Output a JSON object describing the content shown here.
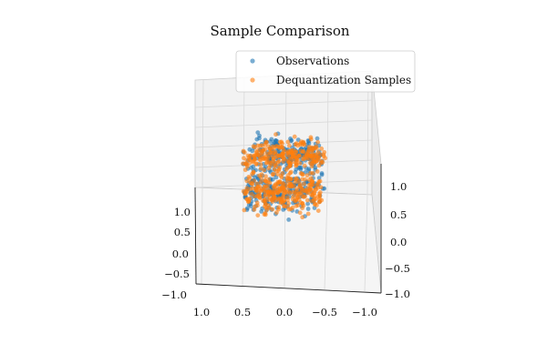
{
  "chart_data": {
    "type": "scatter",
    "projection": "3d",
    "title": "Sample Comparison",
    "xlabel": "",
    "ylabel": "",
    "zlabel": "",
    "grid": true,
    "legend_position": "top-right",
    "x_ticks": [
      "1.0",
      "0.5",
      "0.0",
      "−0.5",
      "−1.0"
    ],
    "y_ticks": [
      "1.0",
      "0.5",
      "0.0",
      "−0.5",
      "−1.0"
    ],
    "z_ticks": [
      "1.0",
      "0.5",
      "0.0",
      "−0.5",
      "−1.0"
    ],
    "xlim": [
      -1.0,
      1.0
    ],
    "ylim": [
      -1.0,
      1.0
    ],
    "zlim": [
      -1.0,
      1.0
    ],
    "series": [
      {
        "name": "Observations",
        "color": "#1f77b4",
        "description_shape": "two stacked dense discs (upper near z=0.5, lower near z=-0.5) with sparse outliers",
        "point_count_estimate": 420
      },
      {
        "name": "Dequantization Samples",
        "color": "#ff7f0e",
        "description_shape": "two stacked dense discs overlapping the observations, with a sparse band between them",
        "point_count_estimate": 520
      }
    ]
  }
}
